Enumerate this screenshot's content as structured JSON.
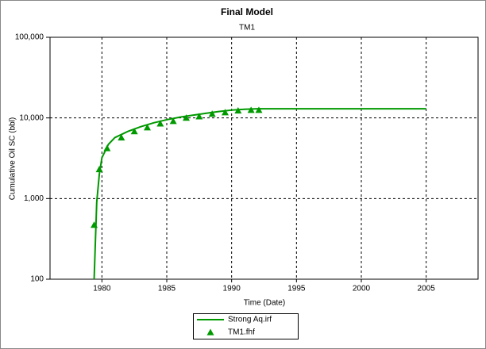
{
  "chart_data": {
    "type": "line",
    "title": "Final Model",
    "subtitle": "TM1",
    "x_label": "Time (Date)",
    "y_label": "Cumulative Oil SC (bbl)",
    "xlim": [
      1976,
      2009
    ],
    "xticks": [
      1980,
      1985,
      1990,
      1995,
      2000,
      2005
    ],
    "ylim": [
      100,
      100000
    ],
    "y_scale": "log",
    "yticks": [
      100,
      {
        "value": 1000,
        "label": "1,000"
      },
      {
        "value": 10000,
        "label": "10,000"
      },
      {
        "value": 100000,
        "label": "100,000"
      }
    ],
    "grid": true,
    "legend": "bottom",
    "series": [
      {
        "name": "Strong Aq.irf",
        "color": "#009900",
        "style": "line",
        "x": [
          1979.4,
          1979.5,
          1979.6,
          1979.8,
          1980,
          1980.5,
          1981,
          1982,
          1983,
          1984,
          1985,
          1986,
          1987,
          1988,
          1989,
          1990,
          1991,
          1992,
          1993,
          2005
        ],
        "values": [
          100,
          300,
          900,
          2000,
          3200,
          4700,
          5700,
          6800,
          7800,
          8700,
          9500,
          10200,
          10800,
          11400,
          12000,
          12500,
          12800,
          13000,
          13000,
          13000
        ]
      },
      {
        "name": "TM1.fhf",
        "color": "#009900",
        "style": "marker",
        "marker": "triangle",
        "x": [
          1979.4,
          1979.8,
          1980.4,
          1981.5,
          1982.5,
          1983.5,
          1984.5,
          1985.5,
          1986.5,
          1987.5,
          1988.5,
          1989.5,
          1990.5,
          1991.5,
          1992.1
        ],
        "values": [
          470,
          2300,
          4200,
          5700,
          6800,
          7600,
          8500,
          9100,
          10000,
          10400,
          11200,
          11700,
          12300,
          12500,
          12500
        ]
      }
    ]
  }
}
